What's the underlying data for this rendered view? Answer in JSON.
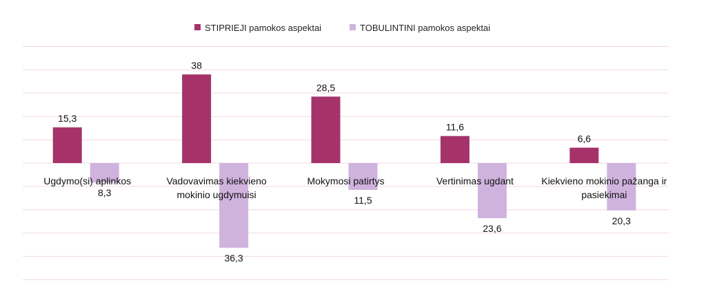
{
  "chart_data": {
    "type": "bar",
    "categories": [
      [
        "Ugdymo(si) aplinkos"
      ],
      [
        "Vadovavimas kiekvieno",
        "mokinio ugdymuisi"
      ],
      [
        "Mokymosi patirtys"
      ],
      [
        "Vertinimas ugdant"
      ],
      [
        "Kiekvieno mokinio pažanga ir",
        "pasiekimai"
      ]
    ],
    "series": [
      {
        "name": "STIPRIEJI pamokos aspektai",
        "color": "#a5336a",
        "values": [
          15.3,
          38,
          28.5,
          11.6,
          6.6
        ],
        "labels": [
          "15,3",
          "38",
          "28,5",
          "11,6",
          "6,6"
        ],
        "direction": "up"
      },
      {
        "name": "TOBULINTINI pamokos aspektai",
        "color": "#cfb3de",
        "values": [
          8.3,
          36.3,
          11.5,
          23.6,
          20.3
        ],
        "labels": [
          "8,3",
          "36,3",
          "11,5",
          "23,6",
          "20,3"
        ],
        "direction": "down"
      }
    ],
    "ylim": [
      -50,
      50
    ],
    "grid_step": 10,
    "grid": true,
    "grid_color": "#f0d7e2",
    "legend": "top-center"
  }
}
